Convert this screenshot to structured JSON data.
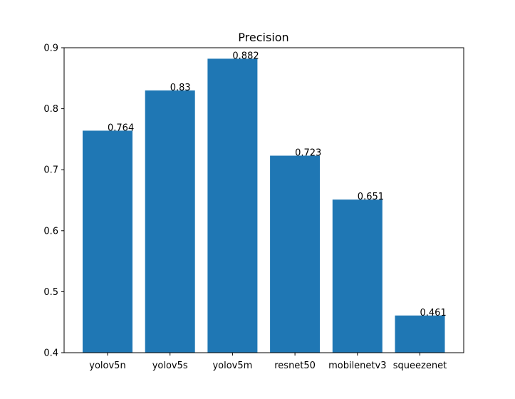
{
  "chart_data": {
    "type": "bar",
    "title": "Precision",
    "xlabel": "",
    "ylabel": "",
    "categories": [
      "yolov5n",
      "yolov5s",
      "yolov5m",
      "resnet50",
      "mobilenetv3",
      "squeezenet"
    ],
    "values": [
      0.764,
      0.83,
      0.882,
      0.723,
      0.651,
      0.461
    ],
    "data_labels": [
      "0.764",
      "0.83",
      "0.882",
      "0.723",
      "0.651",
      "0.461"
    ],
    "yticks": [
      "0.4",
      "0.5",
      "0.6",
      "0.7",
      "0.8",
      "0.9"
    ],
    "ylim": [
      0.4,
      0.9
    ],
    "grid": false,
    "bar_color": "#1f77b4"
  }
}
